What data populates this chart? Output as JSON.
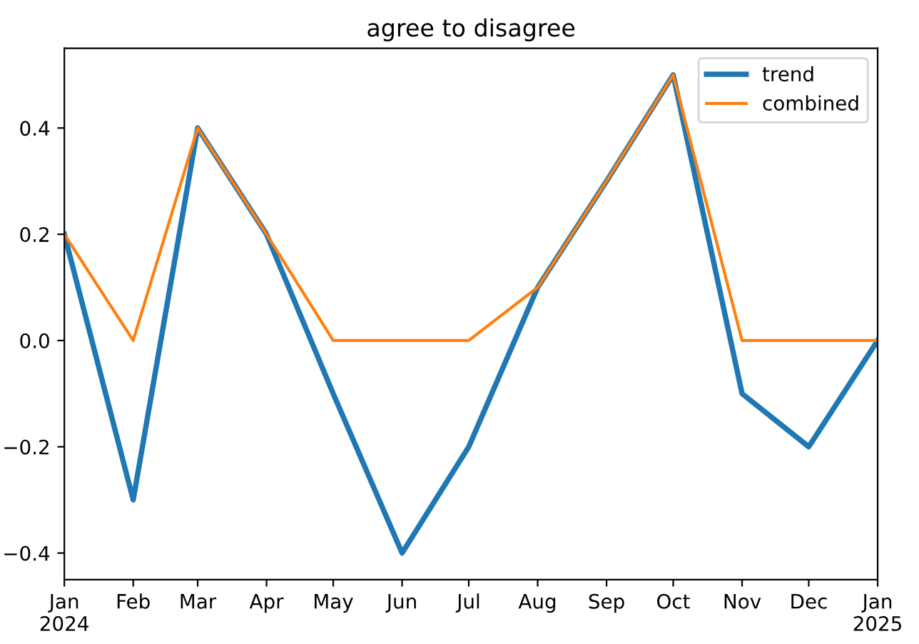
{
  "chart_data": {
    "type": "line",
    "title": "agree to disagree",
    "x": [
      "2024-01",
      "2024-02",
      "2024-03",
      "2024-04",
      "2024-05",
      "2024-06",
      "2024-07",
      "2024-08",
      "2024-09",
      "2024-10",
      "2024-11",
      "2024-12",
      "2025-01"
    ],
    "series": [
      {
        "name": "trend",
        "color": "#1f77b4",
        "values": [
          0.2,
          -0.3,
          0.4,
          0.2,
          -0.1,
          -0.4,
          -0.2,
          0.1,
          0.3,
          0.5,
          -0.1,
          -0.2,
          0.0
        ]
      },
      {
        "name": "combined",
        "color": "#ff7f0e",
        "values": [
          0.2,
          0.0,
          0.4,
          0.2,
          0.0,
          0.0,
          0.0,
          0.1,
          0.3,
          0.5,
          0.0,
          0.0,
          0.0
        ]
      }
    ],
    "xlim": [
      "2024-01",
      "2025-01"
    ],
    "xticks": [
      {
        "value": "2024-01",
        "label": "Jan\n2024"
      },
      {
        "value": "2024-02",
        "label": "Feb"
      },
      {
        "value": "2024-03",
        "label": "Mar"
      },
      {
        "value": "2024-04",
        "label": "Apr"
      },
      {
        "value": "2024-05",
        "label": "May"
      },
      {
        "value": "2024-06",
        "label": "Jun"
      },
      {
        "value": "2024-07",
        "label": "Jul"
      },
      {
        "value": "2024-08",
        "label": "Aug"
      },
      {
        "value": "2024-09",
        "label": "Sep"
      },
      {
        "value": "2024-10",
        "label": "Oct"
      },
      {
        "value": "2024-11",
        "label": "Nov"
      },
      {
        "value": "2024-12",
        "label": "Dec"
      },
      {
        "value": "2025-01",
        "label": "Jan\n2025"
      }
    ],
    "ylim": [
      -0.45,
      0.55
    ],
    "yticks": [
      {
        "value": -0.4,
        "label": "−0.4"
      },
      {
        "value": -0.2,
        "label": "−0.2"
      },
      {
        "value": 0.0,
        "label": "0.0"
      },
      {
        "value": 0.2,
        "label": "0.2"
      },
      {
        "value": 0.4,
        "label": "0.4"
      }
    ],
    "legend": "top right",
    "grid": false
  }
}
